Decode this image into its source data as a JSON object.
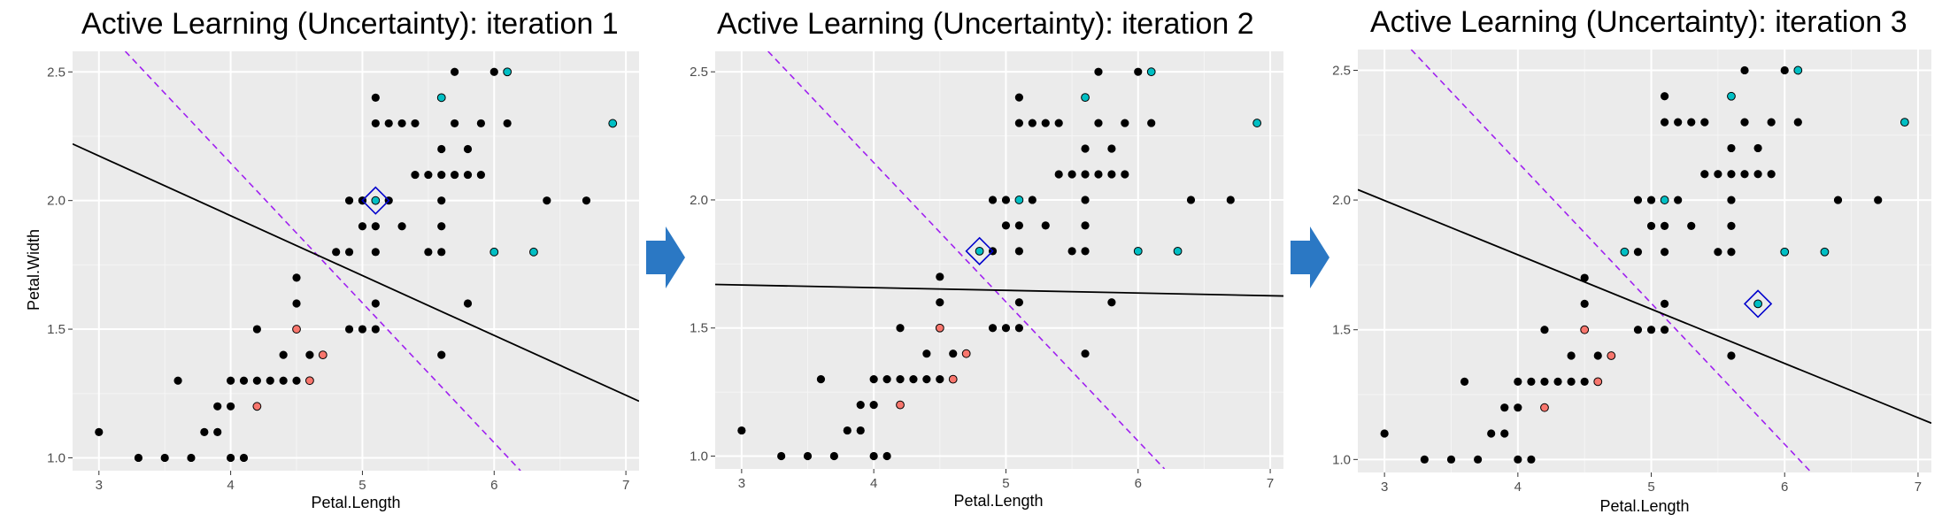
{
  "colors": {
    "panel_bg": "#ebebeb",
    "grid_major": "#ffffff",
    "unlabeled_point": "#000000",
    "class_versicolor": "#f8766d",
    "class_virginica": "#00bfc4",
    "model_boundary": "#000000",
    "true_boundary": "#a020f0",
    "query_marker": "#0000cc",
    "arrow": "#2b78c4"
  },
  "chart_data": [
    {
      "type": "scatter",
      "title": "Active Learning (Uncertainty): iteration 1",
      "xlabel": "Petal.Length",
      "ylabel": "Petal.Width",
      "xlim": [
        2.8,
        7.1
      ],
      "ylim": [
        0.95,
        2.58
      ],
      "xticks": [
        "3",
        "4",
        "5",
        "6",
        "7"
      ],
      "yticks": [
        "1.0",
        "1.5",
        "2.0",
        "2.5"
      ],
      "grid": true,
      "unlabeled": [
        [
          3.0,
          1.1
        ],
        [
          3.3,
          1.0
        ],
        [
          3.5,
          1.0
        ],
        [
          3.7,
          1.0
        ],
        [
          4.0,
          1.0
        ],
        [
          4.1,
          1.0
        ],
        [
          3.8,
          1.1
        ],
        [
          3.9,
          1.1
        ],
        [
          3.9,
          1.2
        ],
        [
          4.0,
          1.2
        ],
        [
          3.6,
          1.3
        ],
        [
          4.0,
          1.3
        ],
        [
          4.1,
          1.3
        ],
        [
          4.2,
          1.3
        ],
        [
          4.3,
          1.3
        ],
        [
          4.4,
          1.3
        ],
        [
          4.5,
          1.3
        ],
        [
          4.4,
          1.4
        ],
        [
          4.6,
          1.4
        ],
        [
          4.7,
          1.4
        ],
        [
          4.2,
          1.5
        ],
        [
          4.9,
          1.5
        ],
        [
          5.0,
          1.5
        ],
        [
          5.1,
          1.5
        ],
        [
          4.5,
          1.6
        ],
        [
          5.1,
          1.6
        ],
        [
          4.5,
          1.7
        ],
        [
          4.8,
          1.8
        ],
        [
          4.9,
          1.8
        ],
        [
          5.1,
          1.8
        ],
        [
          5.5,
          1.8
        ],
        [
          5.6,
          1.8
        ],
        [
          5.8,
          1.6
        ],
        [
          4.9,
          2.0
        ],
        [
          5.0,
          2.0
        ],
        [
          5.0,
          1.9
        ],
        [
          5.3,
          1.9
        ],
        [
          5.1,
          1.9
        ],
        [
          5.6,
          1.4
        ],
        [
          5.2,
          2.0
        ],
        [
          5.6,
          1.9
        ],
        [
          5.6,
          2.0
        ],
        [
          5.1,
          2.4
        ],
        [
          5.1,
          2.3
        ],
        [
          5.2,
          2.3
        ],
        [
          5.3,
          2.3
        ],
        [
          5.4,
          2.3
        ],
        [
          5.7,
          2.3
        ],
        [
          5.9,
          2.3
        ],
        [
          6.1,
          2.3
        ],
        [
          5.4,
          2.1
        ],
        [
          5.5,
          2.1
        ],
        [
          5.6,
          2.1
        ],
        [
          5.7,
          2.1
        ],
        [
          5.8,
          2.1
        ],
        [
          5.6,
          2.2
        ],
        [
          5.7,
          2.5
        ],
        [
          5.8,
          2.2
        ],
        [
          6.0,
          2.5
        ],
        [
          6.4,
          2.0
        ],
        [
          6.7,
          2.0
        ],
        [
          5.6,
          2.4
        ],
        [
          5.0,
          2.0
        ],
        [
          5.9,
          2.1
        ],
        [
          4.5,
          1.5
        ]
      ],
      "labeled": [
        {
          "x": 4.2,
          "y": 1.2,
          "class": "versicolor"
        },
        {
          "x": 4.5,
          "y": 1.5,
          "class": "versicolor"
        },
        {
          "x": 4.6,
          "y": 1.3,
          "class": "versicolor"
        },
        {
          "x": 4.7,
          "y": 1.4,
          "class": "versicolor"
        },
        {
          "x": 5.1,
          "y": 2.0,
          "class": "virginica"
        },
        {
          "x": 5.6,
          "y": 2.4,
          "class": "virginica"
        },
        {
          "x": 6.1,
          "y": 2.5,
          "class": "virginica"
        },
        {
          "x": 6.0,
          "y": 1.8,
          "class": "virginica"
        },
        {
          "x": 6.3,
          "y": 1.8,
          "class": "virginica"
        },
        {
          "x": 6.9,
          "y": 2.3,
          "class": "virginica"
        }
      ],
      "query_point": [
        5.1,
        2.0
      ],
      "model_boundary": [
        [
          2.8,
          2.22
        ],
        [
          7.1,
          1.22
        ]
      ],
      "true_boundary": [
        [
          3.2,
          2.58
        ],
        [
          6.2,
          0.95
        ]
      ]
    },
    {
      "type": "scatter",
      "title": "Active Learning (Uncertainty): iteration 2",
      "xlabel": "Petal.Length",
      "ylabel": "",
      "xlim": [
        2.8,
        7.1
      ],
      "ylim": [
        0.95,
        2.58
      ],
      "xticks": [
        "3",
        "4",
        "5",
        "6",
        "7"
      ],
      "yticks": [
        "1.0",
        "1.5",
        "2.0",
        "2.5"
      ],
      "grid": true,
      "unlabeled": [
        [
          3.0,
          1.1
        ],
        [
          3.3,
          1.0
        ],
        [
          3.5,
          1.0
        ],
        [
          3.7,
          1.0
        ],
        [
          4.0,
          1.0
        ],
        [
          4.1,
          1.0
        ],
        [
          3.8,
          1.1
        ],
        [
          3.9,
          1.1
        ],
        [
          3.9,
          1.2
        ],
        [
          4.0,
          1.2
        ],
        [
          3.6,
          1.3
        ],
        [
          4.0,
          1.3
        ],
        [
          4.1,
          1.3
        ],
        [
          4.2,
          1.3
        ],
        [
          4.3,
          1.3
        ],
        [
          4.4,
          1.3
        ],
        [
          4.5,
          1.3
        ],
        [
          4.4,
          1.4
        ],
        [
          4.6,
          1.4
        ],
        [
          4.7,
          1.4
        ],
        [
          4.2,
          1.5
        ],
        [
          4.9,
          1.5
        ],
        [
          5.0,
          1.5
        ],
        [
          5.1,
          1.5
        ],
        [
          4.5,
          1.6
        ],
        [
          5.1,
          1.6
        ],
        [
          4.5,
          1.7
        ],
        [
          4.9,
          1.8
        ],
        [
          5.1,
          1.8
        ],
        [
          5.5,
          1.8
        ],
        [
          5.6,
          1.8
        ],
        [
          5.8,
          1.6
        ],
        [
          4.9,
          2.0
        ],
        [
          5.0,
          2.0
        ],
        [
          5.0,
          1.9
        ],
        [
          5.3,
          1.9
        ],
        [
          5.1,
          1.9
        ],
        [
          5.6,
          1.4
        ],
        [
          5.1,
          2.0
        ],
        [
          5.6,
          1.9
        ],
        [
          5.6,
          2.0
        ],
        [
          5.1,
          2.4
        ],
        [
          5.1,
          2.3
        ],
        [
          5.2,
          2.3
        ],
        [
          5.3,
          2.3
        ],
        [
          5.4,
          2.3
        ],
        [
          5.7,
          2.3
        ],
        [
          5.9,
          2.3
        ],
        [
          6.1,
          2.3
        ],
        [
          5.4,
          2.1
        ],
        [
          5.5,
          2.1
        ],
        [
          5.6,
          2.1
        ],
        [
          5.7,
          2.1
        ],
        [
          5.8,
          2.1
        ],
        [
          5.6,
          2.2
        ],
        [
          5.7,
          2.5
        ],
        [
          5.8,
          2.2
        ],
        [
          6.0,
          2.5
        ],
        [
          6.4,
          2.0
        ],
        [
          6.7,
          2.0
        ],
        [
          5.6,
          2.4
        ],
        [
          5.2,
          2.0
        ],
        [
          5.9,
          2.1
        ],
        [
          4.5,
          1.5
        ]
      ],
      "labeled": [
        {
          "x": 4.2,
          "y": 1.2,
          "class": "versicolor"
        },
        {
          "x": 4.5,
          "y": 1.5,
          "class": "versicolor"
        },
        {
          "x": 4.6,
          "y": 1.3,
          "class": "versicolor"
        },
        {
          "x": 4.7,
          "y": 1.4,
          "class": "versicolor"
        },
        {
          "x": 5.1,
          "y": 2.0,
          "class": "virginica"
        },
        {
          "x": 4.8,
          "y": 1.8,
          "class": "virginica"
        },
        {
          "x": 5.6,
          "y": 2.4,
          "class": "virginica"
        },
        {
          "x": 6.1,
          "y": 2.5,
          "class": "virginica"
        },
        {
          "x": 6.0,
          "y": 1.8,
          "class": "virginica"
        },
        {
          "x": 6.3,
          "y": 1.8,
          "class": "virginica"
        },
        {
          "x": 6.9,
          "y": 2.3,
          "class": "virginica"
        }
      ],
      "query_point": [
        4.8,
        1.8
      ],
      "model_boundary": [
        [
          2.8,
          1.67
        ],
        [
          7.1,
          1.625
        ]
      ],
      "true_boundary": [
        [
          3.2,
          2.58
        ],
        [
          6.2,
          0.95
        ]
      ]
    },
    {
      "type": "scatter",
      "title": "Active Learning (Uncertainty): iteration 3",
      "xlabel": "Petal.Length",
      "ylabel": "",
      "xlim": [
        2.8,
        7.1
      ],
      "ylim": [
        0.95,
        2.58
      ],
      "xticks": [
        "3",
        "4",
        "5",
        "6",
        "7"
      ],
      "yticks": [
        "1.0",
        "1.5",
        "2.0",
        "2.5"
      ],
      "grid": true,
      "unlabeled": [
        [
          3.0,
          1.1
        ],
        [
          3.3,
          1.0
        ],
        [
          3.5,
          1.0
        ],
        [
          3.7,
          1.0
        ],
        [
          4.0,
          1.0
        ],
        [
          4.1,
          1.0
        ],
        [
          3.8,
          1.1
        ],
        [
          3.9,
          1.1
        ],
        [
          3.9,
          1.2
        ],
        [
          4.0,
          1.2
        ],
        [
          3.6,
          1.3
        ],
        [
          4.0,
          1.3
        ],
        [
          4.1,
          1.3
        ],
        [
          4.2,
          1.3
        ],
        [
          4.3,
          1.3
        ],
        [
          4.4,
          1.3
        ],
        [
          4.5,
          1.3
        ],
        [
          4.4,
          1.4
        ],
        [
          4.6,
          1.4
        ],
        [
          4.7,
          1.4
        ],
        [
          4.2,
          1.5
        ],
        [
          4.9,
          1.5
        ],
        [
          5.0,
          1.5
        ],
        [
          5.1,
          1.5
        ],
        [
          4.5,
          1.6
        ],
        [
          5.1,
          1.6
        ],
        [
          4.5,
          1.7
        ],
        [
          4.9,
          1.8
        ],
        [
          5.1,
          1.8
        ],
        [
          5.5,
          1.8
        ],
        [
          5.6,
          1.8
        ],
        [
          4.9,
          2.0
        ],
        [
          5.0,
          2.0
        ],
        [
          5.0,
          1.9
        ],
        [
          5.3,
          1.9
        ],
        [
          5.1,
          1.9
        ],
        [
          5.6,
          1.4
        ],
        [
          5.2,
          2.0
        ],
        [
          5.6,
          1.9
        ],
        [
          5.6,
          2.0
        ],
        [
          5.1,
          2.4
        ],
        [
          5.1,
          2.3
        ],
        [
          5.2,
          2.3
        ],
        [
          5.3,
          2.3
        ],
        [
          5.4,
          2.3
        ],
        [
          5.7,
          2.3
        ],
        [
          5.9,
          2.3
        ],
        [
          6.1,
          2.3
        ],
        [
          5.4,
          2.1
        ],
        [
          5.5,
          2.1
        ],
        [
          5.6,
          2.1
        ],
        [
          5.7,
          2.1
        ],
        [
          5.8,
          2.1
        ],
        [
          5.6,
          2.2
        ],
        [
          5.7,
          2.5
        ],
        [
          5.8,
          2.2
        ],
        [
          6.0,
          2.5
        ],
        [
          6.4,
          2.0
        ],
        [
          6.7,
          2.0
        ],
        [
          5.6,
          2.4
        ],
        [
          5.9,
          2.1
        ],
        [
          4.5,
          1.5
        ]
      ],
      "labeled": [
        {
          "x": 4.2,
          "y": 1.2,
          "class": "versicolor"
        },
        {
          "x": 4.5,
          "y": 1.5,
          "class": "versicolor"
        },
        {
          "x": 4.6,
          "y": 1.3,
          "class": "versicolor"
        },
        {
          "x": 4.7,
          "y": 1.4,
          "class": "versicolor"
        },
        {
          "x": 5.1,
          "y": 2.0,
          "class": "virginica"
        },
        {
          "x": 4.8,
          "y": 1.8,
          "class": "virginica"
        },
        {
          "x": 5.8,
          "y": 1.6,
          "class": "virginica"
        },
        {
          "x": 5.6,
          "y": 2.4,
          "class": "virginica"
        },
        {
          "x": 6.1,
          "y": 2.5,
          "class": "virginica"
        },
        {
          "x": 6.0,
          "y": 1.8,
          "class": "virginica"
        },
        {
          "x": 6.3,
          "y": 1.8,
          "class": "virginica"
        },
        {
          "x": 6.9,
          "y": 2.3,
          "class": "virginica"
        }
      ],
      "query_point": [
        5.8,
        1.6
      ],
      "model_boundary": [
        [
          2.8,
          2.04
        ],
        [
          7.1,
          1.14
        ]
      ],
      "true_boundary": [
        [
          3.2,
          2.58
        ],
        [
          6.2,
          0.95
        ]
      ]
    }
  ]
}
